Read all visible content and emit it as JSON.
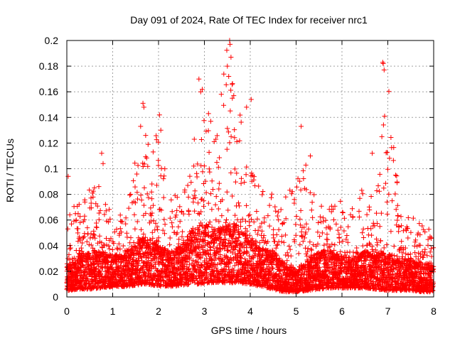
{
  "chart_data": {
    "type": "scatter",
    "title": "Day 091 of 2024, Rate Of TEC Index for receiver nrc1",
    "xlabel": "GPS time / hours",
    "ylabel": "ROTI / TECUs",
    "xlim": [
      0,
      8
    ],
    "ylim": [
      0,
      0.2
    ],
    "xticks": [
      "0",
      "1",
      "2",
      "3",
      "4",
      "5",
      "6",
      "7",
      "8"
    ],
    "yticks": [
      "0",
      "0.02",
      "0.04",
      "0.06",
      "0.08",
      "0.1",
      "0.12",
      "0.14",
      "0.16",
      "0.18",
      "0.2"
    ],
    "grid": true,
    "marker": "+",
    "series_color": "#ff0000",
    "envelope": {
      "hours": [
        0.0,
        0.25,
        0.5,
        0.75,
        1.0,
        1.25,
        1.5,
        1.65,
        1.75,
        2.0,
        2.25,
        2.5,
        2.75,
        2.95,
        3.25,
        3.5,
        3.75,
        4.0,
        4.25,
        4.5,
        4.75,
        5.0,
        5.25,
        5.5,
        5.75,
        6.0,
        6.25,
        6.5,
        6.75,
        7.0,
        7.25,
        7.5,
        7.75,
        8.0
      ],
      "low": [
        0.005,
        0.006,
        0.006,
        0.007,
        0.008,
        0.008,
        0.009,
        0.01,
        0.01,
        0.008,
        0.008,
        0.009,
        0.01,
        0.01,
        0.011,
        0.011,
        0.011,
        0.01,
        0.008,
        0.006,
        0.004,
        0.004,
        0.005,
        0.006,
        0.007,
        0.007,
        0.007,
        0.007,
        0.006,
        0.005,
        0.005,
        0.005,
        0.004,
        0.004
      ],
      "typical": [
        0.02,
        0.028,
        0.03,
        0.03,
        0.028,
        0.03,
        0.034,
        0.04,
        0.04,
        0.034,
        0.03,
        0.034,
        0.045,
        0.05,
        0.045,
        0.048,
        0.048,
        0.042,
        0.032,
        0.03,
        0.022,
        0.018,
        0.025,
        0.03,
        0.03,
        0.028,
        0.025,
        0.03,
        0.03,
        0.028,
        0.026,
        0.025,
        0.022,
        0.02
      ],
      "high": [
        0.07,
        0.075,
        0.085,
        0.09,
        0.06,
        0.07,
        0.11,
        0.135,
        0.12,
        0.13,
        0.075,
        0.085,
        0.105,
        0.165,
        0.13,
        0.2,
        0.15,
        0.1,
        0.085,
        0.08,
        0.08,
        0.09,
        0.11,
        0.075,
        0.07,
        0.08,
        0.07,
        0.1,
        0.08,
        0.18,
        0.07,
        0.07,
        0.06,
        0.05
      ]
    },
    "notable_points": [
      {
        "x": 0.03,
        "y": 0.094
      },
      {
        "x": 0.29,
        "y": 0.058
      },
      {
        "x": 0.76,
        "y": 0.112
      },
      {
        "x": 0.79,
        "y": 0.104
      },
      {
        "x": 1.61,
        "y": 0.133
      },
      {
        "x": 1.66,
        "y": 0.151
      },
      {
        "x": 1.68,
        "y": 0.148
      },
      {
        "x": 1.72,
        "y": 0.126
      },
      {
        "x": 2.02,
        "y": 0.142
      },
      {
        "x": 2.05,
        "y": 0.13
      },
      {
        "x": 2.78,
        "y": 0.123
      },
      {
        "x": 2.88,
        "y": 0.17
      },
      {
        "x": 2.92,
        "y": 0.16
      },
      {
        "x": 3.09,
        "y": 0.143
      },
      {
        "x": 3.14,
        "y": 0.137
      },
      {
        "x": 3.5,
        "y": 0.18
      },
      {
        "x": 3.55,
        "y": 0.2
      },
      {
        "x": 3.56,
        "y": 0.197
      },
      {
        "x": 3.58,
        "y": 0.187
      },
      {
        "x": 3.53,
        "y": 0.172
      },
      {
        "x": 3.61,
        "y": 0.155
      },
      {
        "x": 3.92,
        "y": 0.148
      },
      {
        "x": 4.02,
        "y": 0.154
      },
      {
        "x": 5.11,
        "y": 0.133
      },
      {
        "x": 5.31,
        "y": 0.11
      },
      {
        "x": 6.66,
        "y": 0.112
      },
      {
        "x": 6.89,
        "y": 0.183
      },
      {
        "x": 6.9,
        "y": 0.182
      },
      {
        "x": 6.92,
        "y": 0.177
      },
      {
        "x": 6.93,
        "y": 0.141
      },
      {
        "x": 6.87,
        "y": 0.125
      }
    ]
  }
}
